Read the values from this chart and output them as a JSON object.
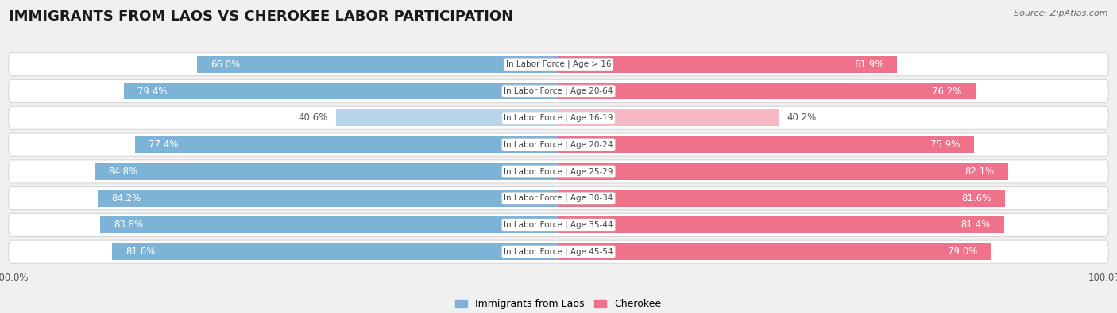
{
  "title": "IMMIGRANTS FROM LAOS VS CHEROKEE LABOR PARTICIPATION",
  "source": "Source: ZipAtlas.com",
  "categories": [
    "In Labor Force | Age > 16",
    "In Labor Force | Age 20-64",
    "In Labor Force | Age 16-19",
    "In Labor Force | Age 20-24",
    "In Labor Force | Age 25-29",
    "In Labor Force | Age 30-34",
    "In Labor Force | Age 35-44",
    "In Labor Force | Age 45-54"
  ],
  "laos_values": [
    66.0,
    79.4,
    40.6,
    77.4,
    84.8,
    84.2,
    83.8,
    81.6
  ],
  "cherokee_values": [
    61.9,
    76.2,
    40.2,
    75.9,
    82.1,
    81.6,
    81.4,
    79.0
  ],
  "laos_color": "#7EB3D8",
  "laos_color_light": "#B8D4EA",
  "cherokee_color": "#F0728A",
  "cherokee_color_light": "#F5B8C4",
  "row_bg_color": "#ffffff",
  "row_border_color": "#d8d8d8",
  "background_color": "#f0f0f0",
  "title_fontsize": 13,
  "value_fontsize": 8.5,
  "cat_fontsize": 7.5,
  "axis_max": 100.0,
  "legend_labels": [
    "Immigrants from Laos",
    "Cherokee"
  ],
  "light_rows": [
    2
  ]
}
